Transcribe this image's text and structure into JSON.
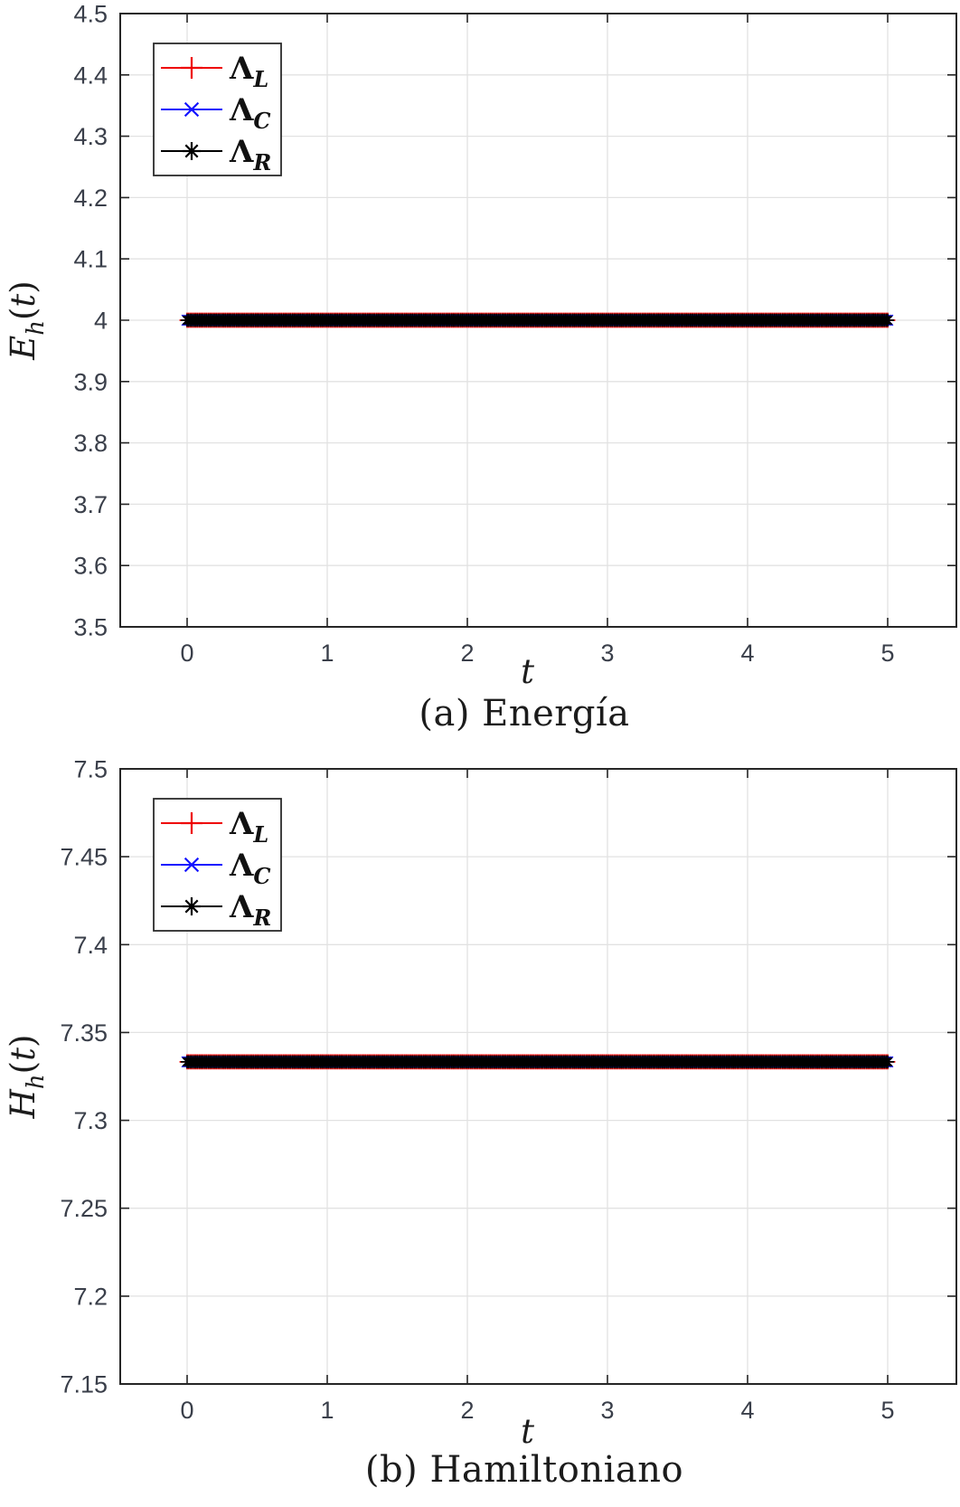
{
  "page": {
    "background": "#ffffff"
  },
  "colors": {
    "grid": "#e2e2e2",
    "axis": "#262626",
    "tick_label": "#3a3f4a",
    "legend_border": "#2b2b2b",
    "legend_background": "#ffffff"
  },
  "chart_data": [
    {
      "type": "line",
      "caption": "(a) Energía",
      "xlabel": "t",
      "ylabel": "E_h(t)",
      "ylabel_parts": {
        "base": "E",
        "sub": "h",
        "arg": "t"
      },
      "xlim": [
        -0.5,
        5.5
      ],
      "ylim": [
        3.5,
        4.5
      ],
      "xticks": [
        0,
        1,
        2,
        3,
        4,
        5
      ],
      "xtick_labels": [
        "0",
        "1",
        "2",
        "3",
        "4",
        "5"
      ],
      "yticks": [
        3.5,
        3.6,
        3.7,
        3.8,
        3.9,
        4,
        4.1,
        4.2,
        4.3,
        4.4,
        4.5
      ],
      "ytick_labels": [
        "3.5",
        "3.6",
        "3.7",
        "3.8",
        "3.9",
        "4",
        "4.1",
        "4.2",
        "4.3",
        "4.4",
        "4.5"
      ],
      "grid": true,
      "legend_position": "top-left",
      "x_range": [
        0,
        5
      ],
      "n_points": 401,
      "series": [
        {
          "name": "Λ_L",
          "label_base": "Λ",
          "label_sub": "L",
          "color": "#ee0000",
          "marker": "plus",
          "value": 4.0
        },
        {
          "name": "Λ_C",
          "label_base": "Λ",
          "label_sub": "C",
          "color": "#1414ff",
          "marker": "x",
          "value": 4.0
        },
        {
          "name": "Λ_R",
          "label_base": "Λ",
          "label_sub": "R",
          "color": "#000000",
          "marker": "asterisk",
          "value": 4.0
        }
      ]
    },
    {
      "type": "line",
      "caption": "(b) Hamiltoniano",
      "xlabel": "t",
      "ylabel": "H_h(t)",
      "ylabel_parts": {
        "base": "H",
        "sub": "h",
        "arg": "t"
      },
      "xlim": [
        -0.5,
        5.5
      ],
      "ylim": [
        7.15,
        7.5
      ],
      "xticks": [
        0,
        1,
        2,
        3,
        4,
        5
      ],
      "xtick_labels": [
        "0",
        "1",
        "2",
        "3",
        "4",
        "5"
      ],
      "yticks": [
        7.15,
        7.2,
        7.25,
        7.3,
        7.35,
        7.4,
        7.45,
        7.5
      ],
      "ytick_labels": [
        "7.15",
        "7.2",
        "7.25",
        "7.3",
        "7.35",
        "7.4",
        "7.45",
        "7.5"
      ],
      "grid": true,
      "legend_position": "top-left",
      "x_range": [
        0,
        5
      ],
      "n_points": 401,
      "series": [
        {
          "name": "Λ_L",
          "label_base": "Λ",
          "label_sub": "L",
          "color": "#ee0000",
          "marker": "plus",
          "value": 7.3333
        },
        {
          "name": "Λ_C",
          "label_base": "Λ",
          "label_sub": "C",
          "color": "#1414ff",
          "marker": "x",
          "value": 7.3333
        },
        {
          "name": "Λ_R",
          "label_base": "Λ",
          "label_sub": "R",
          "color": "#000000",
          "marker": "asterisk",
          "value": 7.3333
        }
      ]
    }
  ]
}
